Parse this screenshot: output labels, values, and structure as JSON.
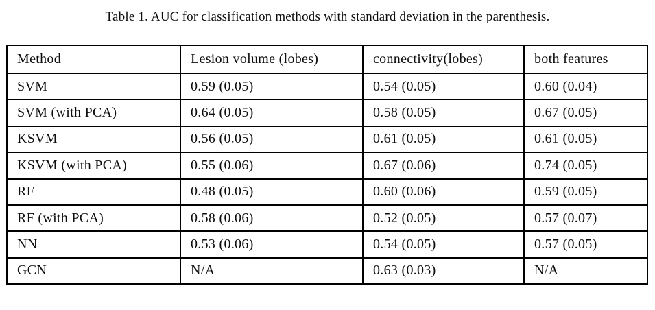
{
  "caption": "Table 1. AUC for classification methods with standard deviation in the parenthesis.",
  "table": {
    "columns": [
      "Method",
      "Lesion volume (lobes)",
      "connectivity(lobes)",
      "both features"
    ],
    "rows": [
      [
        "SVM",
        "0.59 (0.05)",
        "0.54 (0.05)",
        "0.60 (0.04)"
      ],
      [
        "SVM (with PCA)",
        "0.64 (0.05)",
        "0.58 (0.05)",
        "0.67 (0.05)"
      ],
      [
        "KSVM",
        "0.56 (0.05)",
        "0.61 (0.05)",
        "0.61 (0.05)"
      ],
      [
        "KSVM (with PCA)",
        "0.55 (0.06)",
        "0.67 (0.06)",
        "0.74 (0.05)"
      ],
      [
        "RF",
        "0.48 (0.05)",
        "0.60 (0.06)",
        "0.59 (0.05)"
      ],
      [
        "RF (with PCA)",
        "0.58 (0.06)",
        "0.52 (0.05)",
        "0.57 (0.07)"
      ],
      [
        "NN",
        "0.53 (0.06)",
        "0.54 (0.05)",
        "0.57 (0.05)"
      ],
      [
        "GCN",
        "N/A",
        "0.63 (0.03)",
        "N/A"
      ]
    ]
  },
  "chart_data": {
    "type": "table",
    "title": "Table 1. AUC for classification methods with standard deviation in the parenthesis.",
    "columns": [
      "Method",
      "Lesion volume (lobes)",
      "connectivity(lobes)",
      "both features"
    ],
    "methods": [
      "SVM",
      "SVM (with PCA)",
      "KSVM",
      "KSVM (with PCA)",
      "RF",
      "RF (with PCA)",
      "NN",
      "GCN"
    ],
    "series": [
      {
        "name": "Lesion volume (lobes)",
        "auc": [
          0.59,
          0.64,
          0.56,
          0.55,
          0.48,
          0.58,
          0.53,
          null
        ],
        "std": [
          0.05,
          0.05,
          0.05,
          0.06,
          0.05,
          0.06,
          0.06,
          null
        ]
      },
      {
        "name": "connectivity(lobes)",
        "auc": [
          0.54,
          0.58,
          0.61,
          0.67,
          0.6,
          0.52,
          0.54,
          0.63
        ],
        "std": [
          0.05,
          0.05,
          0.05,
          0.06,
          0.06,
          0.05,
          0.05,
          0.03
        ]
      },
      {
        "name": "both features",
        "auc": [
          0.6,
          0.67,
          0.61,
          0.74,
          0.59,
          0.57,
          0.57,
          null
        ],
        "std": [
          0.04,
          0.05,
          0.05,
          0.05,
          0.05,
          0.07,
          0.05,
          null
        ]
      }
    ],
    "not_available_label": "N/A"
  }
}
